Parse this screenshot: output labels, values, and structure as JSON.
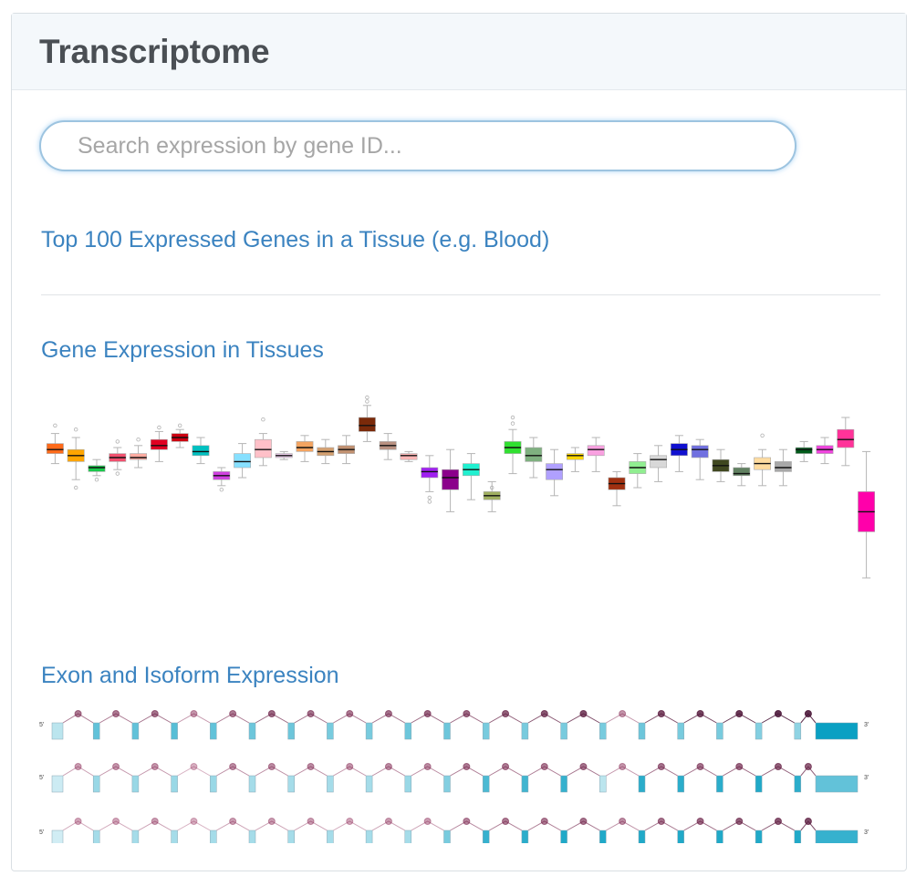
{
  "panel": {
    "title": "Transcriptome",
    "search_placeholder": "Search expression by gene ID...",
    "top_genes_link": "Top 100 Expressed Genes in a Tissue (e.g. Blood)",
    "gene_expression_link": "Gene Expression in Tissues",
    "exon_link": "Exon and Isoform Expression"
  },
  "chart_data": {
    "type": "boxplot",
    "title": "",
    "xlabel": "",
    "ylabel": "",
    "ylim": [
      0,
      100
    ],
    "series": [
      {
        "color": "#ff6a1a",
        "q1": 62,
        "median": 64,
        "q3": 67,
        "lo": 57,
        "hi": 72,
        "outliers": [
          76
        ]
      },
      {
        "color": "#ffa500",
        "q1": 58,
        "median": 61,
        "q3": 64,
        "lo": 49,
        "hi": 70,
        "outliers": [
          45,
          74
        ]
      },
      {
        "color": "#1ac84b",
        "q1": 53,
        "median": 55,
        "q3": 56,
        "lo": 51,
        "hi": 59,
        "outliers": [
          49
        ]
      },
      {
        "color": "#f0506e",
        "q1": 58,
        "median": 60,
        "q3": 62,
        "lo": 54,
        "hi": 65,
        "outliers": [
          52,
          68
        ]
      },
      {
        "color": "#ffaaa0",
        "q1": 59,
        "median": 60,
        "q3": 62,
        "lo": 55,
        "hi": 66,
        "outliers": [
          69
        ]
      },
      {
        "color": "#e00022",
        "q1": 64,
        "median": 66,
        "q3": 69,
        "lo": 58,
        "hi": 73,
        "outliers": [
          75
        ]
      },
      {
        "color": "#cc0011",
        "q1": 68,
        "median": 70,
        "q3": 72,
        "lo": 65,
        "hi": 74,
        "outliers": [
          76
        ]
      },
      {
        "color": "#00c0c0",
        "q1": 61,
        "median": 63,
        "q3": 66,
        "lo": 57,
        "hi": 70,
        "outliers": []
      },
      {
        "color": "#d040e0",
        "q1": 49,
        "median": 51,
        "q3": 53,
        "lo": 46,
        "hi": 55,
        "outliers": [
          44
        ]
      },
      {
        "color": "#87e0ff",
        "q1": 55,
        "median": 58,
        "q3": 62,
        "lo": 50,
        "hi": 67,
        "outliers": []
      },
      {
        "color": "#ffc0c8",
        "q1": 60,
        "median": 64,
        "q3": 69,
        "lo": 56,
        "hi": 72,
        "outliers": [
          79
        ]
      },
      {
        "color": "#e8c8e8",
        "q1": 60,
        "median": 61,
        "q3": 62,
        "lo": 59,
        "hi": 63,
        "outliers": []
      },
      {
        "color": "#f4a460",
        "q1": 63,
        "median": 65,
        "q3": 68,
        "lo": 58,
        "hi": 71,
        "outliers": []
      },
      {
        "color": "#d4a070",
        "q1": 61,
        "median": 63,
        "q3": 65,
        "lo": 57,
        "hi": 69,
        "outliers": []
      },
      {
        "color": "#c09070",
        "q1": 62,
        "median": 64,
        "q3": 66,
        "lo": 57,
        "hi": 71,
        "outliers": []
      },
      {
        "color": "#7a2a0a",
        "q1": 73,
        "median": 76,
        "q3": 80,
        "lo": 68,
        "hi": 86,
        "outliers": [
          88,
          90
        ]
      },
      {
        "color": "#b89080",
        "q1": 64,
        "median": 66,
        "q3": 68,
        "lo": 59,
        "hi": 72,
        "outliers": []
      },
      {
        "color": "#ffb6b6",
        "q1": 59,
        "median": 61,
        "q3": 62,
        "lo": 58,
        "hi": 63,
        "outliers": []
      },
      {
        "color": "#a020f0",
        "q1": 50,
        "median": 53,
        "q3": 55,
        "lo": 43,
        "hi": 61,
        "outliers": [
          40,
          38
        ]
      },
      {
        "color": "#8b008b",
        "q1": 44,
        "median": 50,
        "q3": 54,
        "lo": 33,
        "hi": 64,
        "outliers": []
      },
      {
        "color": "#20f0d0",
        "q1": 51,
        "median": 54,
        "q3": 57,
        "lo": 39,
        "hi": 62,
        "outliers": []
      },
      {
        "color": "#a0b060",
        "q1": 39,
        "median": 41,
        "q3": 43,
        "lo": 33,
        "hi": 48,
        "outliers": [
          45
        ]
      },
      {
        "color": "#30e030",
        "q1": 62,
        "median": 65,
        "q3": 68,
        "lo": 52,
        "hi": 74,
        "outliers": [
          77,
          80
        ]
      },
      {
        "color": "#7fb080",
        "q1": 58,
        "median": 61,
        "q3": 65,
        "lo": 50,
        "hi": 70,
        "outliers": []
      },
      {
        "color": "#b0a0ff",
        "q1": 49,
        "median": 54,
        "q3": 57,
        "lo": 41,
        "hi": 64,
        "outliers": []
      },
      {
        "color": "#ffd700",
        "q1": 59,
        "median": 61,
        "q3": 62,
        "lo": 53,
        "hi": 65,
        "outliers": []
      },
      {
        "color": "#f8a0e0",
        "q1": 61,
        "median": 64,
        "q3": 66,
        "lo": 53,
        "hi": 70,
        "outliers": []
      },
      {
        "color": "#a03010",
        "q1": 44,
        "median": 47,
        "q3": 50,
        "lo": 36,
        "hi": 53,
        "outliers": []
      },
      {
        "color": "#90ee90",
        "q1": 52,
        "median": 55,
        "q3": 58,
        "lo": 45,
        "hi": 62,
        "outliers": []
      },
      {
        "color": "#d8d8d8",
        "q1": 55,
        "median": 59,
        "q3": 61,
        "lo": 48,
        "hi": 66,
        "outliers": []
      },
      {
        "color": "#1010d0",
        "q1": 61,
        "median": 64,
        "q3": 67,
        "lo": 53,
        "hi": 71,
        "outliers": []
      },
      {
        "color": "#7070e0",
        "q1": 60,
        "median": 64,
        "q3": 66,
        "lo": 49,
        "hi": 69,
        "outliers": []
      },
      {
        "color": "#404820",
        "q1": 53,
        "median": 56,
        "q3": 59,
        "lo": 48,
        "hi": 64,
        "outliers": []
      },
      {
        "color": "#608060",
        "q1": 51,
        "median": 52,
        "q3": 55,
        "lo": 46,
        "hi": 57,
        "outliers": []
      },
      {
        "color": "#ffdca0",
        "q1": 54,
        "median": 57,
        "q3": 60,
        "lo": 46,
        "hi": 64,
        "outliers": [
          71
        ]
      },
      {
        "color": "#a8a8a8",
        "q1": 53,
        "median": 55,
        "q3": 58,
        "lo": 46,
        "hi": 64,
        "outliers": []
      },
      {
        "color": "#005a1a",
        "q1": 62,
        "median": 64,
        "q3": 65,
        "lo": 58,
        "hi": 68,
        "outliers": []
      },
      {
        "color": "#ee44dd",
        "q1": 62,
        "median": 64,
        "q3": 66,
        "lo": 57,
        "hi": 70,
        "outliers": []
      },
      {
        "color": "#ff3399",
        "q1": 65,
        "median": 69,
        "q3": 74,
        "lo": 56,
        "hi": 80,
        "outliers": []
      },
      {
        "color": "#ff00aa",
        "q1": 23,
        "median": 33,
        "q3": 43,
        "lo": 0,
        "hi": 63,
        "outliers": []
      }
    ]
  },
  "exon_chart": {
    "prime5": "5'",
    "prime3": "3'",
    "tracks": [
      {
        "exons": [
          0.2,
          0.6,
          0.6,
          0.65,
          0.6,
          0.55,
          0.55,
          0.5,
          0.5,
          0.55,
          0.55,
          0.5,
          0.5,
          0.5,
          0.5,
          0.55,
          0.5,
          0.5,
          0.45,
          0.4,
          1.0
        ],
        "junctions": [
          0.45,
          0.45,
          0.5,
          0.3,
          0.45,
          0.55,
          0.5,
          0.45,
          0.5,
          0.55,
          0.55,
          0.6,
          0.65,
          0.7,
          0.3,
          0.7,
          0.75,
          0.8,
          0.85,
          0.85
        ],
        "exonColor": "#0a9ab8"
      },
      {
        "exons": [
          0.12,
          0.35,
          0.35,
          0.35,
          0.35,
          0.3,
          0.3,
          0.3,
          0.3,
          0.35,
          0.45,
          0.7,
          0.75,
          0.8,
          0.2,
          0.85,
          0.85,
          0.85,
          0.9,
          0.85,
          0.6
        ],
        "junctions": [
          0.25,
          0.3,
          0.3,
          0.15,
          0.35,
          0.35,
          0.35,
          0.3,
          0.35,
          0.35,
          0.45,
          0.45,
          0.45,
          0.5,
          0.3,
          0.5,
          0.5,
          0.55,
          0.6,
          0.6
        ],
        "exonColor": "#0fb8d8"
      },
      {
        "exons": [
          0.1,
          0.3,
          0.3,
          0.3,
          0.3,
          0.3,
          0.3,
          0.3,
          0.3,
          0.3,
          0.5,
          0.8,
          0.85,
          0.9,
          0.9,
          0.9,
          0.9,
          0.9,
          0.9,
          0.9,
          0.8
        ],
        "junctions": [
          0.2,
          0.2,
          0.25,
          0.15,
          0.25,
          0.25,
          0.25,
          0.2,
          0.25,
          0.25,
          0.4,
          0.45,
          0.45,
          0.5,
          0.35,
          0.5,
          0.55,
          0.6,
          0.65,
          0.7
        ],
        "exonColor": "#0fb8d8"
      }
    ]
  }
}
